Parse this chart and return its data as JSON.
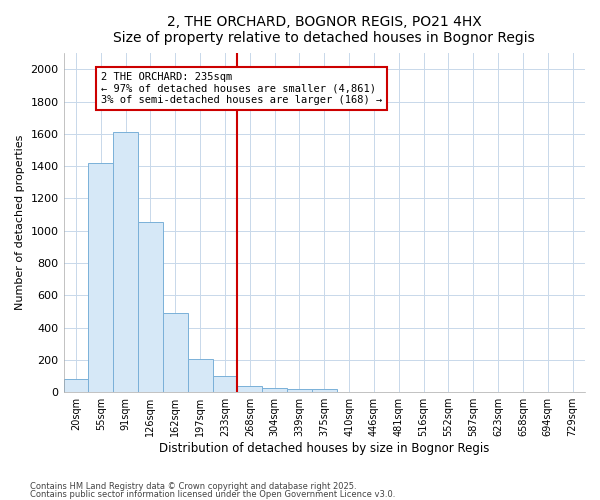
{
  "title": "2, THE ORCHARD, BOGNOR REGIS, PO21 4HX",
  "subtitle": "Size of property relative to detached houses in Bognor Regis",
  "xlabel": "Distribution of detached houses by size in Bognor Regis",
  "ylabel": "Number of detached properties",
  "bar_labels": [
    "20sqm",
    "55sqm",
    "91sqm",
    "126sqm",
    "162sqm",
    "197sqm",
    "233sqm",
    "268sqm",
    "304sqm",
    "339sqm",
    "375sqm",
    "410sqm",
    "446sqm",
    "481sqm",
    "516sqm",
    "552sqm",
    "587sqm",
    "623sqm",
    "658sqm",
    "694sqm",
    "729sqm"
  ],
  "bar_values": [
    80,
    1420,
    1610,
    1055,
    490,
    205,
    100,
    40,
    28,
    18,
    18,
    0,
    0,
    0,
    0,
    0,
    0,
    0,
    0,
    0,
    0
  ],
  "bar_color": "#d6e8f7",
  "bar_edge_color": "#7ab0d8",
  "vline_x": 6.5,
  "vline_color": "#cc0000",
  "annotation_text": "2 THE ORCHARD: 235sqm\n← 97% of detached houses are smaller (4,861)\n3% of semi-detached houses are larger (168) →",
  "annotation_box_color": "white",
  "annotation_box_edge": "#cc0000",
  "ylim": [
    0,
    2100
  ],
  "yticks": [
    0,
    200,
    400,
    600,
    800,
    1000,
    1200,
    1400,
    1600,
    1800,
    2000
  ],
  "footnote1": "Contains HM Land Registry data © Crown copyright and database right 2025.",
  "footnote2": "Contains public sector information licensed under the Open Government Licence v3.0.",
  "bg_color": "#ffffff",
  "grid_color": "#c8d8ea"
}
